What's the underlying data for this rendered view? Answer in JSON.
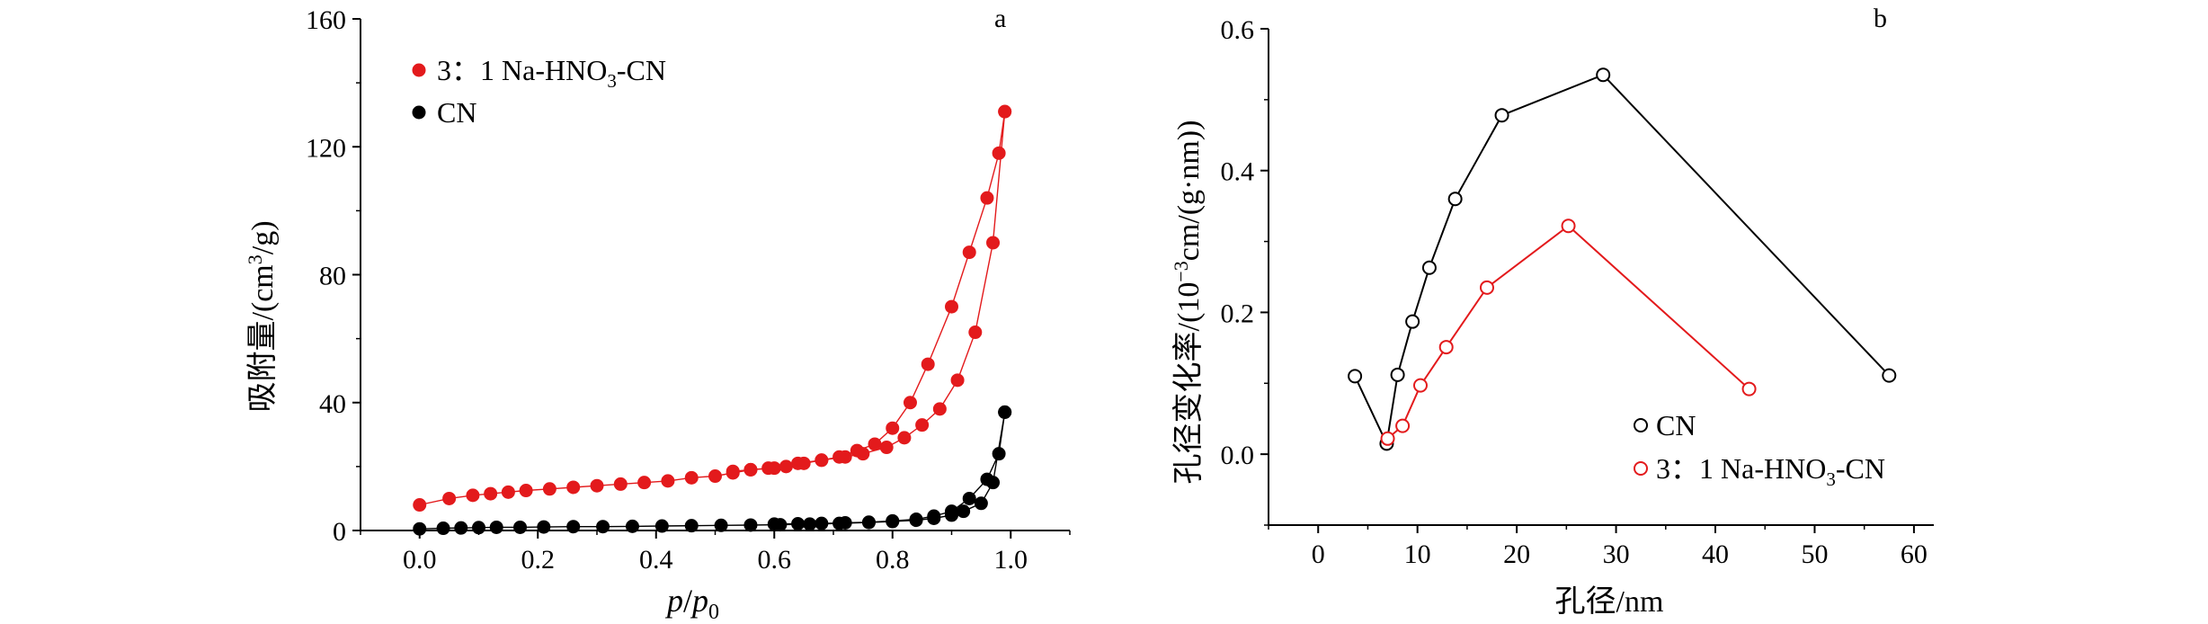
{
  "chart_data": [
    {
      "panel_label": "a",
      "type": "line",
      "xlabel_italic_main": "p",
      "xlabel_sep": "/",
      "xlabel_italic_sub_base": "p",
      "xlabel_sub": "0",
      "ylabel_pre": "吸附量/(cm",
      "ylabel_sup": "3",
      "ylabel_post": "/g)",
      "xlim": [
        -0.1,
        1.1
      ],
      "ylim": [
        0,
        160
      ],
      "xticks": [
        "0.0",
        "0.2",
        "0.4",
        "0.6",
        "0.8",
        "1.0"
      ],
      "yticks": [
        "0",
        "40",
        "80",
        "120",
        "160"
      ],
      "legend_position": "top-left",
      "series": [
        {
          "name_pre": "3：1 Na-HNO",
          "name_sub": "3",
          "name_post": "-CN",
          "color": "#e31a1c",
          "marker": "filled-circle",
          "adsorption": {
            "x": [
              0.0,
              0.05,
              0.09,
              0.12,
              0.15,
              0.18,
              0.22,
              0.26,
              0.3,
              0.34,
              0.38,
              0.42,
              0.46,
              0.5,
              0.53,
              0.56,
              0.6,
              0.64,
              0.68,
              0.72,
              0.75,
              0.79,
              0.82,
              0.85,
              0.88,
              0.91,
              0.94,
              0.97,
              0.99
            ],
            "y": [
              8,
              10,
              11,
              11.5,
              12,
              12.5,
              13,
              13.5,
              14,
              14.5,
              15,
              15.5,
              16.5,
              17,
              18,
              19,
              19.5,
              21,
              22,
              23,
              24,
              26,
              29,
              33,
              38,
              47,
              62,
              90,
              131
            ]
          },
          "desorption": {
            "x": [
              0.99,
              0.98,
              0.96,
              0.93,
              0.9,
              0.86,
              0.83,
              0.8,
              0.77,
              0.74,
              0.71,
              0.68,
              0.65,
              0.62,
              0.59,
              0.56,
              0.53
            ],
            "y": [
              131,
              118,
              104,
              87,
              70,
              52,
              40,
              32,
              27,
              25,
              23,
              22,
              21,
              20,
              19.5,
              19,
              18.5
            ]
          }
        },
        {
          "name": "CN",
          "color": "#000000",
          "marker": "filled-circle",
          "adsorption": {
            "x": [
              0.0,
              0.04,
              0.07,
              0.1,
              0.13,
              0.17,
              0.21,
              0.26,
              0.31,
              0.36,
              0.41,
              0.46,
              0.51,
              0.56,
              0.61,
              0.66,
              0.71,
              0.76,
              0.8,
              0.84,
              0.87,
              0.9,
              0.92,
              0.95,
              0.97,
              0.99
            ],
            "y": [
              0.5,
              0.7,
              0.8,
              0.9,
              1.0,
              1.0,
              1.1,
              1.2,
              1.2,
              1.3,
              1.4,
              1.5,
              1.6,
              1.7,
              1.8,
              2.0,
              2.2,
              2.5,
              2.8,
              3.2,
              3.8,
              4.8,
              6.0,
              8.5,
              15,
              37
            ]
          },
          "desorption": {
            "x": [
              0.99,
              0.98,
              0.96,
              0.93,
              0.9,
              0.87,
              0.84,
              0.8,
              0.76,
              0.72,
              0.68,
              0.64,
              0.6
            ],
            "y": [
              37,
              24,
              16,
              10,
              6,
              4.5,
              3.5,
              3.0,
              2.6,
              2.4,
              2.2,
              2.1,
              2.0
            ]
          }
        }
      ]
    },
    {
      "panel_label": "b",
      "type": "line",
      "xlabel": "孔径/nm",
      "ylabel_pre": "孔径变化率/(10",
      "ylabel_sup": "−3",
      "ylabel_post": "cm/(g·nm))",
      "xlim": [
        -5,
        62
      ],
      "ylim": [
        -0.1,
        0.6
      ],
      "xticks": [
        "0",
        "10",
        "20",
        "30",
        "40",
        "50",
        "60"
      ],
      "yticks": [
        "0.0",
        "0.2",
        "0.4",
        "0.6"
      ],
      "legend_position": "bottom-center",
      "series": [
        {
          "name": "CN",
          "color": "#000000",
          "marker": "open-circle",
          "x": [
            3.7,
            6.9,
            8.0,
            9.5,
            11.2,
            13.8,
            18.5,
            28.7,
            57.5
          ],
          "y": [
            0.11,
            0.015,
            0.112,
            0.187,
            0.263,
            0.36,
            0.478,
            0.535,
            0.111
          ]
        },
        {
          "name_pre": "3：1 Na-HNO",
          "name_sub": "3",
          "name_post": "-CN",
          "color": "#e31a1c",
          "marker": "open-circle",
          "x": [
            7.0,
            8.5,
            10.3,
            12.9,
            17.0,
            25.2,
            43.4
          ],
          "y": [
            0.022,
            0.04,
            0.097,
            0.151,
            0.235,
            0.322,
            0.092
          ]
        }
      ]
    }
  ]
}
